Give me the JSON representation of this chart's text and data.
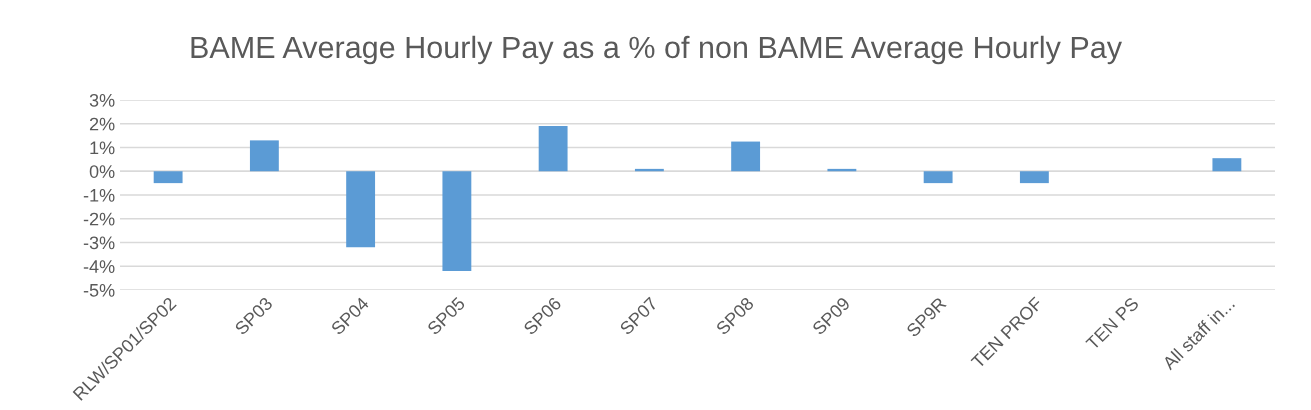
{
  "chart_data": {
    "type": "bar",
    "title": "BAME Average Hourly Pay as a % of non BAME Average Hourly Pay",
    "categories": [
      "RLW/SP01/SP02",
      "SP03",
      "SP04",
      "SP05",
      "SP06",
      "SP07",
      "SP08",
      "SP09",
      "SP9R",
      "TEN PROF",
      "TEN PS",
      "All staff in..."
    ],
    "values": [
      -0.5,
      1.3,
      -3.2,
      -4.2,
      1.9,
      0.1,
      1.25,
      0.1,
      -0.5,
      -0.5,
      0,
      0.55
    ],
    "color": "#5b9bd5",
    "ylim": [
      -5,
      3
    ],
    "yticks": [
      {
        "value": -5,
        "label": "-5%"
      },
      {
        "value": -4,
        "label": "-4%"
      },
      {
        "value": -3,
        "label": "-3%"
      },
      {
        "value": -2,
        "label": "-2%"
      },
      {
        "value": -1,
        "label": "-1%"
      },
      {
        "value": 0,
        "label": "0%"
      },
      {
        "value": 1,
        "label": "1%"
      },
      {
        "value": 2,
        "label": "2%"
      },
      {
        "value": 3,
        "label": "3%"
      }
    ],
    "grid": "y"
  }
}
